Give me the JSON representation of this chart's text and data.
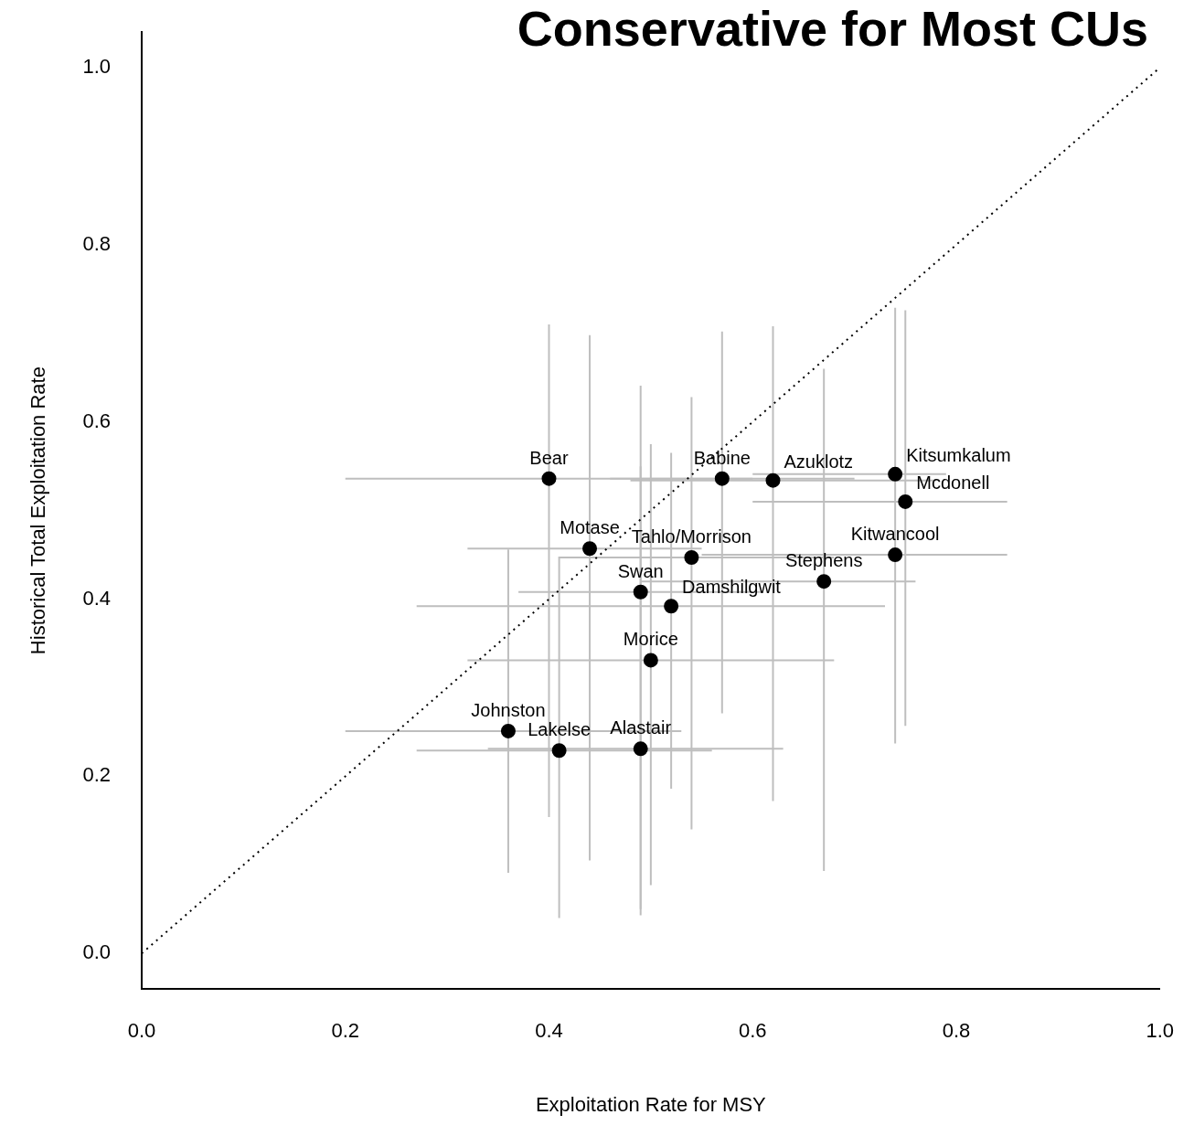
{
  "chart_data": {
    "type": "scatter",
    "title": "Conservative for Most CUs",
    "xlabel": "Exploitation Rate for MSY",
    "ylabel": "Historical Total Exploitation Rate",
    "xlim": [
      0,
      1
    ],
    "ylim": [
      -0.04,
      1.04
    ],
    "xticks": [
      {
        "value": 0,
        "label": "0.0"
      },
      {
        "value": 0.2,
        "label": "0.2"
      },
      {
        "value": 0.4,
        "label": "0.4"
      },
      {
        "value": 0.6,
        "label": "0.6"
      },
      {
        "value": 0.8,
        "label": "0.8"
      },
      {
        "value": 1,
        "label": "1.0"
      }
    ],
    "yticks": [
      {
        "value": 0,
        "label": "0.0"
      },
      {
        "value": 0.2,
        "label": "0.2"
      },
      {
        "value": 0.4,
        "label": "0.4"
      },
      {
        "value": 0.6,
        "label": "0.6"
      },
      {
        "value": 0.8,
        "label": "0.8"
      },
      {
        "value": 1,
        "label": "1.0"
      }
    ],
    "grid": false,
    "legend": false,
    "series": [
      {
        "color": "#000000",
        "marker": "circle",
        "x": [
          0.4,
          0.57,
          0.62,
          0.74,
          0.75,
          0.74,
          0.67,
          0.44,
          0.54,
          0.49,
          0.52,
          0.5,
          0.36,
          0.41,
          0.49
        ],
        "values": [
          0.536,
          0.536,
          0.534,
          0.541,
          0.51,
          0.45,
          0.42,
          0.457,
          0.447,
          0.408,
          0.392,
          0.331,
          0.251,
          0.229,
          0.231
        ],
        "errors": [
          [
            0.154,
            0.71
          ],
          [
            0.271,
            0.702
          ],
          [
            0.172,
            0.708
          ],
          [
            0.237,
            0.729
          ],
          [
            0.257,
            0.726
          ],
          null,
          [
            0.093,
            0.66
          ],
          [
            0.105,
            0.698
          ],
          [
            0.14,
            0.628
          ],
          [
            0.05,
            0.641
          ],
          [
            0.186,
            0.565
          ],
          [
            0.077,
            0.575
          ],
          [
            0.091,
            0.456
          ],
          [
            0.04,
            0.448
          ],
          [
            0.043,
            0.55
          ]
        ],
        "xerrors": [
          [
            0.2,
            0.6
          ],
          [
            0.46,
            0.7
          ],
          [
            0.48,
            0.78
          ],
          [
            0.6,
            0.79
          ],
          [
            0.6,
            0.85
          ],
          [
            0.55,
            0.85
          ],
          [
            0.49,
            0.76
          ],
          [
            0.32,
            0.55
          ],
          [
            0.41,
            0.68
          ],
          [
            0.37,
            0.61
          ],
          [
            0.27,
            0.73
          ],
          [
            0.32,
            0.68
          ],
          [
            0.2,
            0.53
          ],
          [
            0.27,
            0.56
          ],
          [
            0.34,
            0.63
          ]
        ]
      },
      {
        "type": "line",
        "color": "#000000",
        "marker": "none",
        "line_style": "dotted",
        "x": [
          0,
          1
        ],
        "values": [
          0,
          1
        ]
      }
    ],
    "annotations": [
      {
        "text": "Bear",
        "x": 0.4,
        "y": 0.536
      },
      {
        "text": "Babine",
        "x": 0.57,
        "y": 0.536
      },
      {
        "text": "Azuklotz",
        "x": 0.62,
        "y": 0.534
      },
      {
        "text": "Kitsumkalum",
        "x": 0.74,
        "y": 0.541
      },
      {
        "text": "Mcdonell",
        "x": 0.75,
        "y": 0.51
      },
      {
        "text": "Kitwancool",
        "x": 0.74,
        "y": 0.45
      },
      {
        "text": "Stephens",
        "x": 0.67,
        "y": 0.42
      },
      {
        "text": "Motase",
        "x": 0.44,
        "y": 0.457
      },
      {
        "text": "Tahlo/Morrison",
        "x": 0.54,
        "y": 0.447
      },
      {
        "text": "Swan",
        "x": 0.49,
        "y": 0.408
      },
      {
        "text": "Damshilgwit",
        "x": 0.52,
        "y": 0.392
      },
      {
        "text": "Morice",
        "x": 0.5,
        "y": 0.331
      },
      {
        "text": "Johnston",
        "x": 0.36,
        "y": 0.251
      },
      {
        "text": "Lakelse",
        "x": 0.41,
        "y": 0.229
      },
      {
        "text": "Alastair",
        "x": 0.49,
        "y": 0.231
      }
    ]
  }
}
